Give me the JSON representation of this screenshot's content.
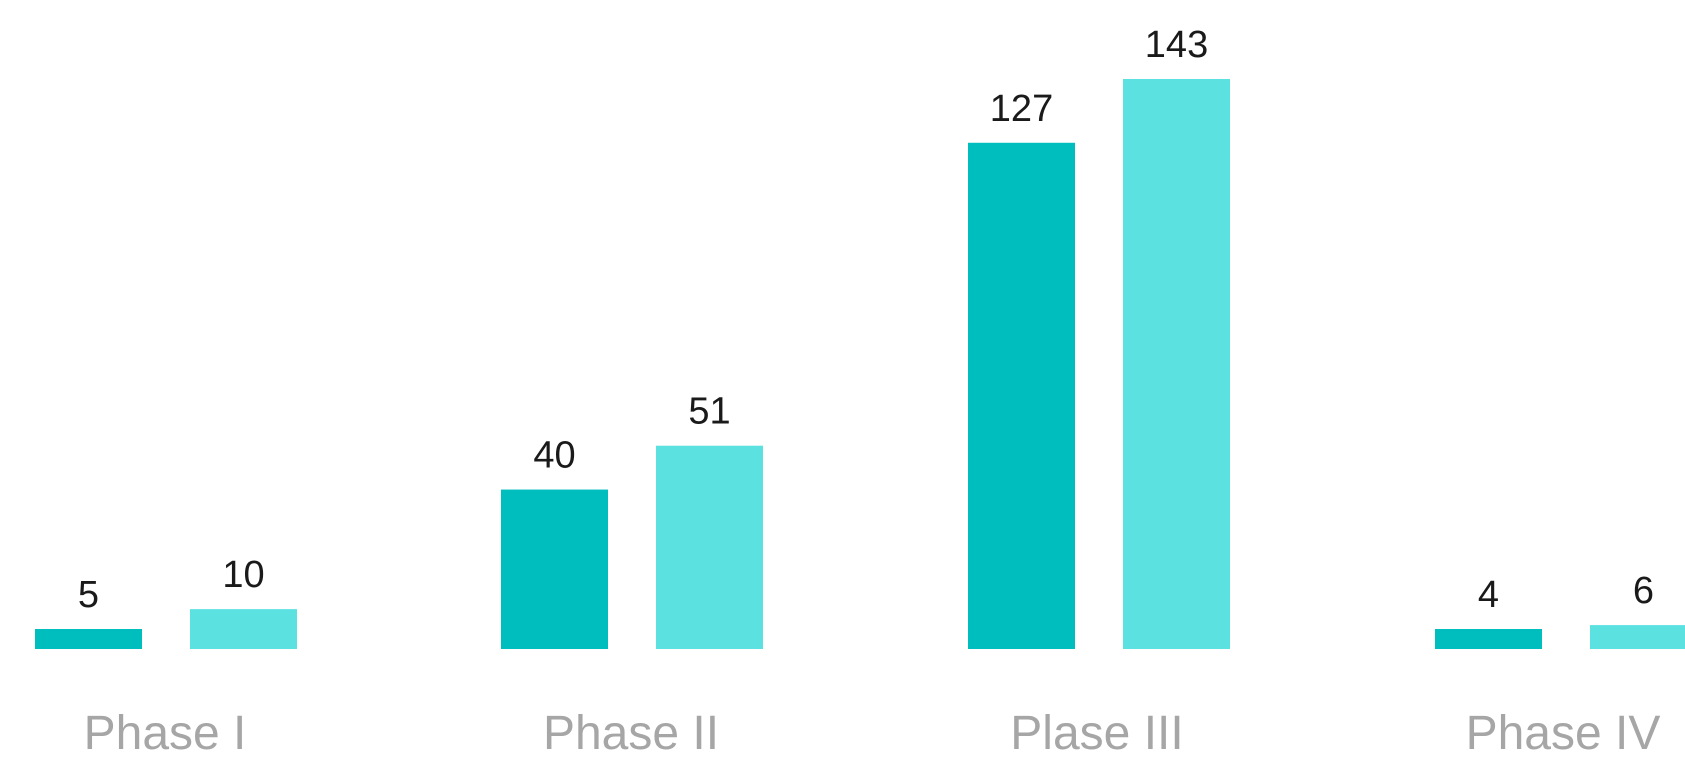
{
  "chart_data": {
    "type": "bar",
    "title": "",
    "xlabel": "",
    "ylabel": "",
    "categories": [
      "Phase I",
      "Phase II",
      "Plase III",
      "Phase IV"
    ],
    "series": [
      {
        "values": [
          5,
          40,
          127,
          4
        ],
        "color": "#00BEBE"
      },
      {
        "values": [
          10,
          51,
          143,
          6
        ],
        "color": "#5CE1E1"
      }
    ],
    "ylim": [
      0,
      143
    ],
    "grid": false,
    "legend": "none",
    "axes_visible": false
  }
}
